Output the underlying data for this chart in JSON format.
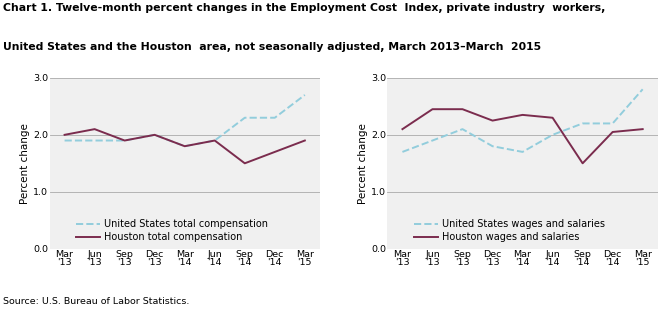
{
  "title_line1": "Chart 1. Twelve-month percent changes in the Employment Cost  Index, private industry  workers,",
  "title_line2": "United States and the Houston  area, not seasonally adjusted, March 2013–March  2015",
  "source": "Source: U.S. Bureau of Labor Statistics.",
  "ylabel": "Percent change",
  "ylim": [
    0.0,
    3.0
  ],
  "yticks": [
    0.0,
    1.0,
    2.0,
    3.0
  ],
  "tick_labels": [
    "Mar\n'13",
    "Jun\n'13",
    "Sep\n'13",
    "Dec\n'13",
    "Mar\n'14",
    "Jun\n'14",
    "Sep\n'14",
    "Dec\n'14",
    "Mar\n'15"
  ],
  "left_us_data": [
    1.9,
    1.9,
    1.9,
    2.0,
    1.8,
    1.9,
    2.3,
    2.3,
    2.7
  ],
  "left_houston_data": [
    2.0,
    2.1,
    1.9,
    2.0,
    1.8,
    1.9,
    1.5,
    1.7,
    1.9
  ],
  "right_us_data": [
    1.7,
    1.9,
    2.1,
    1.8,
    1.7,
    2.0,
    2.2,
    2.2,
    2.8
  ],
  "right_houston_data": [
    2.1,
    2.45,
    2.45,
    2.25,
    2.35,
    2.3,
    1.5,
    2.05,
    2.1
  ],
  "left_legend1": "United States total compensation",
  "left_legend2": "Houston total compensation",
  "right_legend1": "United States wages and salaries",
  "right_legend2": "Houston wages and salaries",
  "us_color": "#92CDDC",
  "houston_color": "#7B2C4E",
  "us_linestyle": "--",
  "houston_linestyle": "-",
  "linewidth": 1.4,
  "grid_color": "#AAAAAA",
  "bg_color": "#F0F0F0",
  "title_fontsize": 7.8,
  "label_fontsize": 7.5,
  "tick_fontsize": 6.8,
  "legend_fontsize": 7.0,
  "source_fontsize": 6.8
}
